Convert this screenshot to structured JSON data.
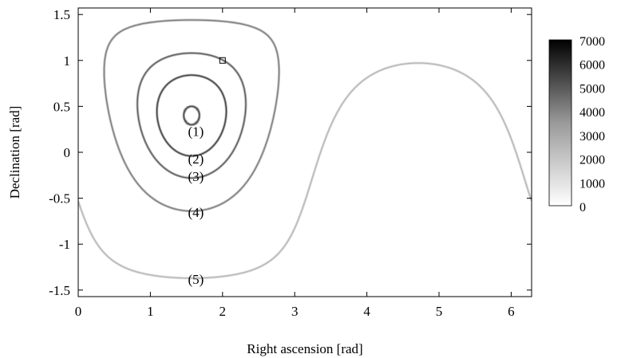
{
  "chart_data": {
    "type": "line",
    "title": "",
    "xlabel": "Right ascension [rad]",
    "ylabel": "Declination [rad]",
    "xlim": [
      0,
      6.283
    ],
    "ylim": [
      -1.571,
      1.571
    ],
    "xticks": [
      {
        "value": 0,
        "label": "0"
      },
      {
        "value": 1,
        "label": "1"
      },
      {
        "value": 2,
        "label": "2"
      },
      {
        "value": 3,
        "label": "3"
      },
      {
        "value": 4,
        "label": "4"
      },
      {
        "value": 5,
        "label": "5"
      },
      {
        "value": 6,
        "label": "6"
      }
    ],
    "yticks": [
      {
        "value": -1.5,
        "label": "-1.5"
      },
      {
        "value": -1,
        "label": "-1"
      },
      {
        "value": -0.5,
        "label": "-0.5"
      },
      {
        "value": 0,
        "label": "0"
      },
      {
        "value": 0.5,
        "label": "0.5"
      },
      {
        "value": 1,
        "label": "1"
      },
      {
        "value": 1.5,
        "label": "1.5"
      }
    ],
    "grid": false,
    "center": {
      "ra": 1.571,
      "dec": 0.4
    },
    "curves": [
      {
        "label": "(1)",
        "angular_radius": 0.1,
        "density": 0.7,
        "label_pos": {
          "ra": 1.63,
          "dec": 0.23
        }
      },
      {
        "label": "(2)",
        "angular_radius": 0.44,
        "density": 0.72,
        "label_pos": {
          "ra": 1.63,
          "dec": -0.07
        }
      },
      {
        "label": "(3)",
        "angular_radius": 0.68,
        "density": 0.62,
        "label_pos": {
          "ra": 1.63,
          "dec": -0.26
        }
      },
      {
        "label": "(4)",
        "angular_radius": 1.04,
        "density": 0.5,
        "label_pos": {
          "ra": 1.63,
          "dec": -0.65
        }
      },
      {
        "label": "(5)",
        "angular_radius": 1.77,
        "density": 0.28,
        "label_pos": {
          "ra": 1.63,
          "dec": -1.38
        }
      }
    ],
    "marker": {
      "shape": "square",
      "ra": 2.0,
      "dec": 1.0
    },
    "colorbar": {
      "min": 0,
      "max": 7000,
      "ticks": [
        "0",
        "1000",
        "2000",
        "3000",
        "4000",
        "5000",
        "6000",
        "7000"
      ],
      "colormap": "white-to-black"
    }
  }
}
